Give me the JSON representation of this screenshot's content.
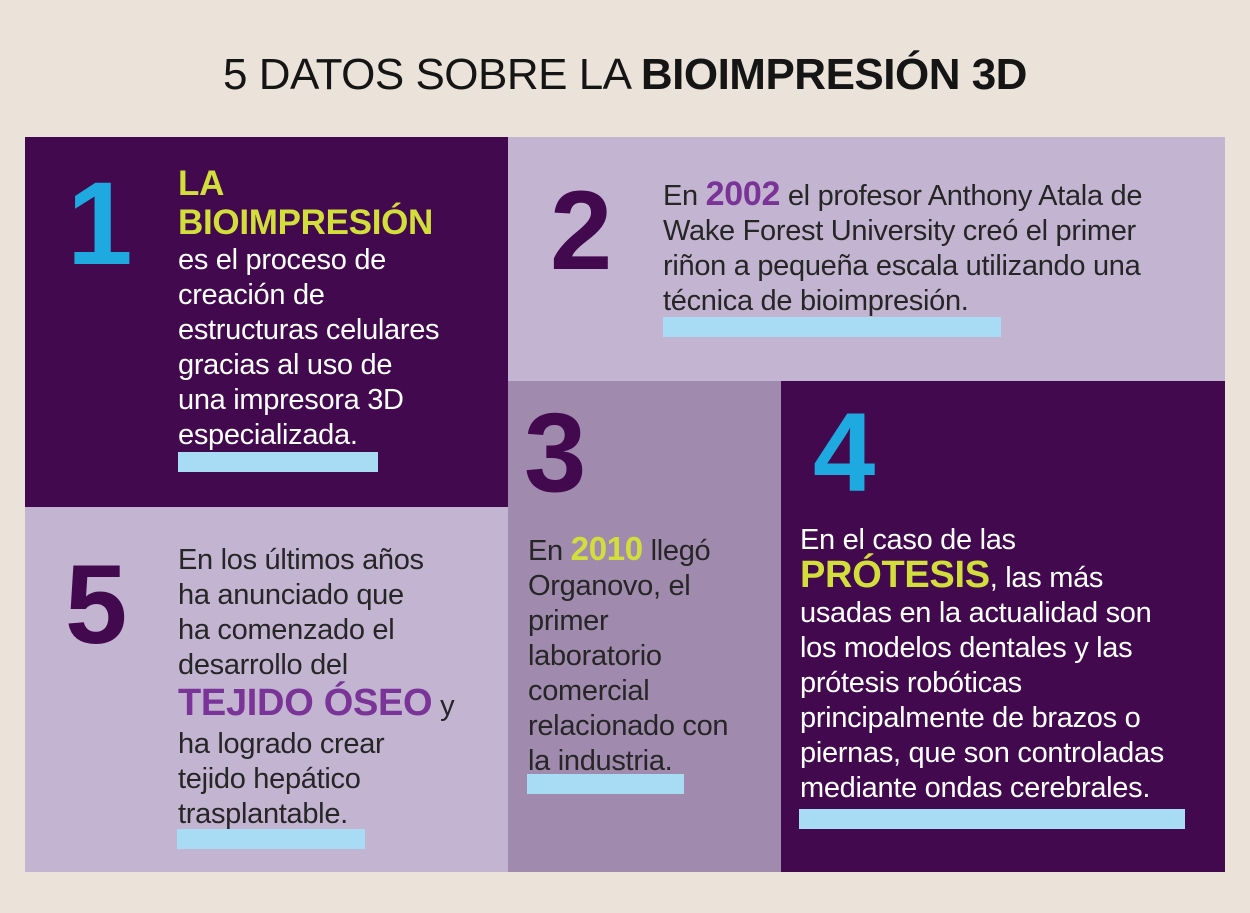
{
  "title": {
    "regular": "5 DATOS SOBRE LA ",
    "bold": "BIOIMPRESIÓN 3D"
  },
  "colors": {
    "dark_panel": "#43094f",
    "light_panel": "#c3b5d2",
    "mid_panel": "#a08aae",
    "cyan_number": "#1fa9e1",
    "yellow_accent": "#d2df3b",
    "purple_accent": "#7a3396",
    "highlight": "#a8dcf5"
  },
  "facts": {
    "f1": {
      "number": "1",
      "heading1": "LA",
      "heading2": "BIOIMPRESIÓN",
      "lines": [
        "es el proceso de",
        "creación de",
        "estructuras celulares",
        "gracias al uso de",
        "una impresora 3D"
      ],
      "last_line": "especializada."
    },
    "f2": {
      "number": "2",
      "pre": "En ",
      "year": "2002",
      "post": " el profesor Anthony Atala de",
      "lines": [
        "Wake Forest University creó el primer",
        "riñon a pequeña escala utilizando una"
      ],
      "last_line": "técnica de bioimpresión."
    },
    "f3": {
      "number": "3",
      "pre": "En ",
      "year": "2010",
      "post": " llegó",
      "lines": [
        "Organovo, el",
        "primer",
        "laboratorio",
        "comercial",
        "relacionado con"
      ],
      "last_line": "la industria."
    },
    "f4": {
      "number": "4",
      "line1": "En el caso de las",
      "keyword": "PRÓTESIS",
      "keyword_post": ", las más",
      "lines": [
        "usadas en la actualidad son",
        "los modelos dentales y las",
        "prótesis robóticas",
        "principalmente de brazos o",
        "piernas, que son controladas"
      ],
      "last_line": "mediante ondas cerebrales."
    },
    "f5": {
      "number": "5",
      "lines": [
        "En los últimos años",
        "ha anunciado que",
        "ha comenzado el",
        "desarrollo del"
      ],
      "keyword": "TEJIDO ÓSEO",
      "keyword_post": " y",
      "lines2": [
        "ha logrado crear",
        "tejido hepático"
      ],
      "last_line": "trasplantable."
    }
  }
}
